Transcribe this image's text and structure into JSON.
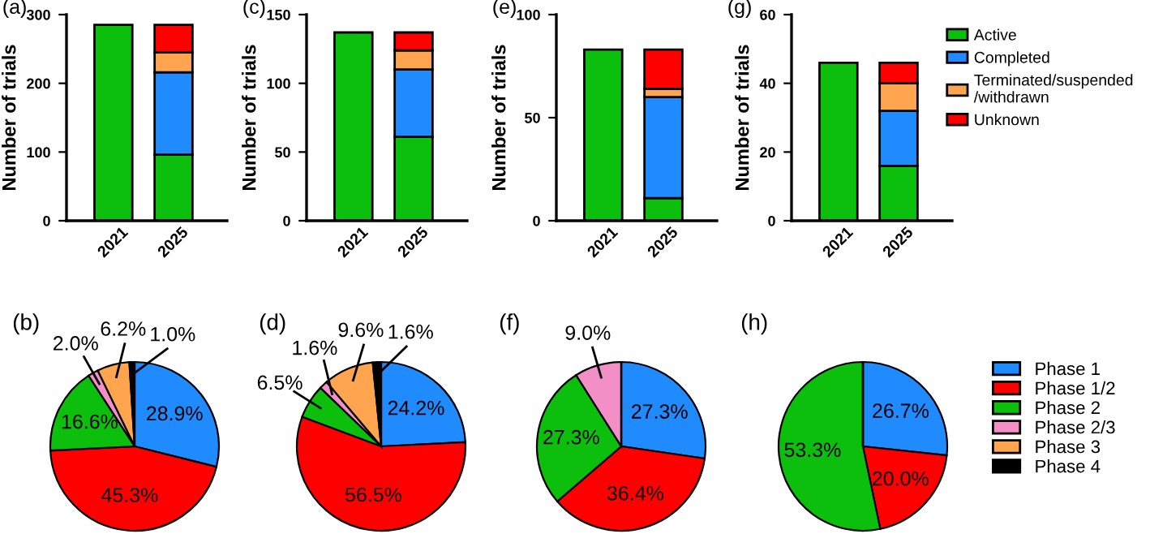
{
  "chart_data": [
    {
      "type": "bar",
      "title": "(a)",
      "ylabel": "Number of trials",
      "categories": [
        "2021",
        "2025"
      ],
      "stacked": true,
      "ylim": [
        0,
        300
      ],
      "yticks": [
        0,
        100,
        200,
        300
      ],
      "grid": false,
      "legend": false,
      "series": [
        {
          "color": "#0cbf0c",
          "values": [
            285,
            96
          ]
        },
        {
          "color": "#1f8bff",
          "values": [
            null,
            120
          ]
        },
        {
          "color": "#ffa54f",
          "values": [
            null,
            29
          ]
        },
        {
          "color": "#ff0000",
          "values": [
            null,
            40
          ]
        }
      ]
    },
    {
      "type": "bar",
      "title": "(c)",
      "ylabel": "Number of trials",
      "categories": [
        "2021",
        "2025"
      ],
      "stacked": true,
      "ylim": [
        0,
        150
      ],
      "yticks": [
        0,
        50,
        100,
        150
      ],
      "grid": false,
      "legend": false,
      "series": [
        {
          "color": "#0cbf0c",
          "values": [
            137,
            61
          ]
        },
        {
          "color": "#1f8bff",
          "values": [
            null,
            49
          ]
        },
        {
          "color": "#ffa54f",
          "values": [
            null,
            14
          ]
        },
        {
          "color": "#ff0000",
          "values": [
            null,
            13
          ]
        }
      ]
    },
    {
      "type": "bar",
      "title": "(e)",
      "ylabel": "Number of trials",
      "categories": [
        "2021",
        "2025"
      ],
      "stacked": true,
      "ylim": [
        0,
        100
      ],
      "yticks": [
        0,
        50,
        100
      ],
      "grid": false,
      "legend": false,
      "series": [
        {
          "color": "#0cbf0c",
          "values": [
            83,
            11
          ]
        },
        {
          "color": "#1f8bff",
          "values": [
            null,
            49
          ]
        },
        {
          "color": "#ffa54f",
          "values": [
            null,
            4
          ]
        },
        {
          "color": "#ff0000",
          "values": [
            null,
            19
          ]
        }
      ]
    },
    {
      "type": "bar",
      "title": "(g)",
      "ylabel": "Number of trials",
      "categories": [
        "2021",
        "2025"
      ],
      "stacked": true,
      "ylim": [
        0,
        60
      ],
      "yticks": [
        0,
        20,
        40,
        60
      ],
      "grid": false,
      "legend": "right",
      "series": [
        {
          "name": "Active",
          "color": "#0cbf0c",
          "values": [
            46,
            16
          ]
        },
        {
          "name": "Completed",
          "color": "#1f8bff",
          "values": [
            null,
            16
          ]
        },
        {
          "name": "Terminated/suspended\n/withdrawn",
          "color": "#ffa54f",
          "values": [
            null,
            8
          ]
        },
        {
          "name": "Unknown",
          "color": "#ff0000",
          "values": [
            null,
            6
          ]
        }
      ]
    },
    {
      "type": "pie",
      "title": "(b)",
      "categories": [
        null,
        null,
        null,
        null,
        null,
        null
      ],
      "colors": [
        "#1f8bff",
        "#ff0000",
        "#0cbf0c",
        "#f28fc6",
        "#ffa54f",
        "#000000"
      ],
      "values": [
        28.9,
        45.3,
        16.6,
        2.0,
        6.2,
        1.0
      ],
      "value_labels": [
        "28.9%",
        "45.3%",
        "16.6%",
        "2.0%",
        "6.2%",
        "1.0%"
      ]
    },
    {
      "type": "pie",
      "title": "(d)",
      "categories": [
        null,
        null,
        null,
        null,
        null,
        null
      ],
      "colors": [
        "#1f8bff",
        "#ff0000",
        "#0cbf0c",
        "#f28fc6",
        "#ffa54f",
        "#000000"
      ],
      "values": [
        24.2,
        56.5,
        6.5,
        1.6,
        9.6,
        1.6
      ],
      "value_labels": [
        "24.2%",
        "56.5%",
        "6.5%",
        "1.6%",
        "9.6%",
        "1.6%"
      ]
    },
    {
      "type": "pie",
      "title": "(f)",
      "categories": [
        null,
        null,
        null,
        null,
        null,
        null
      ],
      "colors": [
        "#1f8bff",
        "#ff0000",
        "#0cbf0c",
        "#f28fc6",
        "#ffa54f",
        "#000000"
      ],
      "values": [
        27.3,
        36.4,
        27.3,
        9.0,
        0,
        0
      ],
      "value_labels": [
        "27.3%",
        "36.4%",
        "27.3%",
        "9.0%",
        null,
        null
      ]
    },
    {
      "type": "pie",
      "title": "(h)",
      "legend": "right",
      "categories": [
        "Phase 1",
        "Phase 1/2",
        "Phase 2",
        "Phase 2/3",
        "Phase 3",
        "Phase 4"
      ],
      "colors": [
        "#1f8bff",
        "#ff0000",
        "#0cbf0c",
        "#f28fc6",
        "#ffa54f",
        "#000000"
      ],
      "values": [
        26.7,
        20.0,
        53.3,
        0,
        0,
        0
      ],
      "value_labels": [
        "26.7%",
        "20.0%",
        "53.3%",
        null,
        null,
        null
      ]
    }
  ]
}
